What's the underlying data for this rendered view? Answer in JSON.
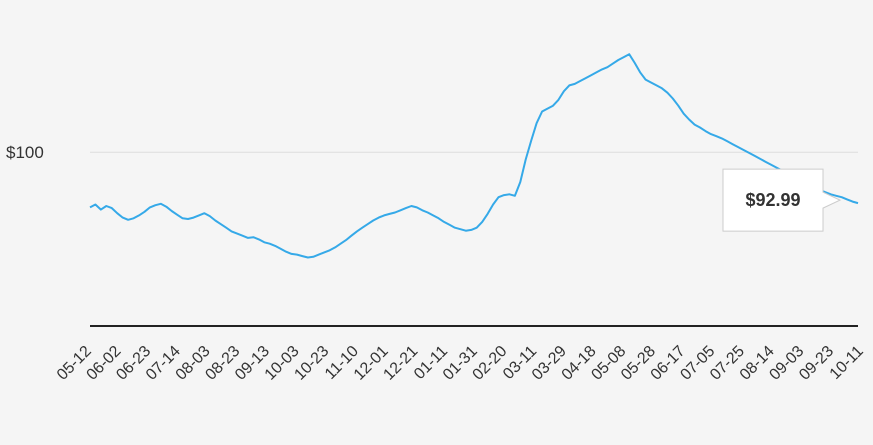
{
  "chart_data": {
    "type": "line",
    "title": "",
    "xlabel": "",
    "ylabel": "",
    "colors": {
      "line": "#35a9e8",
      "grid": "#dddddd",
      "baseline": "#222222",
      "background": "#f5f5f5"
    },
    "y_tick": {
      "value": 100,
      "label": "$100"
    },
    "x_tick_labels": [
      "05-12",
      "06-02",
      "06-23",
      "07-14",
      "08-03",
      "08-23",
      "09-13",
      "10-03",
      "10-23",
      "11-10",
      "12-01",
      "12-21",
      "01-11",
      "01-31",
      "02-20",
      "03-11",
      "03-29",
      "04-18",
      "05-08",
      "05-28",
      "06-17",
      "07-05",
      "07-25",
      "08-14",
      "09-03",
      "09-23",
      "10-11"
    ],
    "series": [
      {
        "values": [
          92.4,
          92.8,
          92.1,
          92.6,
          92.3,
          91.6,
          91.0,
          90.7,
          90.9,
          91.3,
          91.8,
          92.4,
          92.7,
          92.9,
          92.5,
          91.9,
          91.4,
          90.9,
          90.8,
          91.0,
          91.3,
          91.6,
          91.2,
          90.6,
          90.1,
          89.6,
          89.1,
          88.8,
          88.5,
          88.2,
          88.3,
          88.0,
          87.6,
          87.4,
          87.1,
          86.7,
          86.3,
          86.0,
          85.9,
          85.7,
          85.5,
          85.6,
          85.9,
          86.2,
          86.5,
          86.9,
          87.4,
          87.9,
          88.5,
          89.1,
          89.6,
          90.1,
          90.6,
          91.0,
          91.3,
          91.5,
          91.7,
          92.0,
          92.3,
          92.6,
          92.4,
          92.0,
          91.7,
          91.3,
          90.9,
          90.4,
          90.0,
          89.6,
          89.4,
          89.2,
          89.3,
          89.6,
          90.4,
          91.5,
          92.8,
          93.8,
          94.1,
          94.2,
          94.0,
          95.9,
          99.0,
          101.6,
          104.0,
          105.6,
          106.0,
          106.4,
          107.2,
          108.4,
          109.2,
          109.4,
          109.8,
          110.2,
          110.6,
          111.0,
          111.4,
          111.7,
          112.2,
          112.7,
          113.1,
          113.5,
          112.3,
          111.0,
          110.0,
          109.6,
          109.2,
          108.8,
          108.2,
          107.4,
          106.4,
          105.3,
          104.5,
          103.8,
          103.4,
          102.9,
          102.5,
          102.2,
          101.9,
          101.5,
          101.1,
          100.7,
          100.3,
          99.9,
          99.5,
          99.1,
          98.7,
          98.3,
          97.9,
          97.5,
          97.2,
          96.8,
          96.4,
          96.0,
          95.6,
          95.2,
          94.8,
          94.5,
          94.2,
          94.0,
          93.8,
          93.5,
          93.2,
          92.99
        ]
      }
    ],
    "ylim": [
      78,
      116
    ],
    "grid": {
      "horizontal": [
        100
      ]
    },
    "annotation": {
      "label": "$92.99",
      "value": 92.99
    }
  }
}
